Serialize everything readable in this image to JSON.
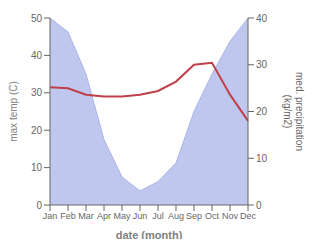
{
  "chart_data": {
    "type": "line",
    "categories": [
      "Jan",
      "Feb",
      "Mar",
      "Apr",
      "May",
      "Jun",
      "Jul",
      "Aug",
      "Sep",
      "Oct",
      "Nov",
      "Dec"
    ],
    "series": [
      {
        "type": "area",
        "axis": "y2",
        "color": "#aab4e8",
        "values": [
          40,
          37,
          28,
          14,
          6,
          3,
          5,
          9,
          20,
          28,
          35,
          40
        ]
      },
      {
        "type": "line",
        "color": "#c0404a",
        "values": [
          31.5,
          31.2,
          29.5,
          29.0,
          29.0,
          29.5,
          30.5,
          33.0,
          37.5,
          38.0,
          29.5,
          22.5
        ]
      }
    ],
    "xlabel": "date (month)",
    "ylabel": "max temp (C)",
    "y2label": "med. precipitation\n(kg/m2)",
    "ylim": [
      0,
      50
    ],
    "yticks": [
      0,
      10,
      20,
      30,
      40,
      50
    ],
    "y2lim": [
      0,
      40
    ],
    "y2ticks": [
      0,
      10,
      20,
      30,
      40
    ],
    "grid": false
  }
}
